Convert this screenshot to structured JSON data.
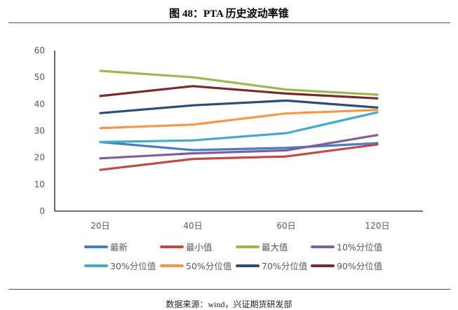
{
  "figure": {
    "title": "图 48：PTA 历史波动率锥",
    "source": "数据来源：wind，兴证期货研发部"
  },
  "chart_data": {
    "type": "line",
    "title": "PTA 历史波动率锥",
    "xlabel": "",
    "ylabel": "",
    "categories": [
      "20日",
      "40日",
      "60日",
      "120日"
    ],
    "ylim": [
      0,
      60
    ],
    "yticks": [
      0,
      10,
      20,
      30,
      40,
      50,
      60
    ],
    "grid": false,
    "legend_position": "bottom",
    "series": [
      {
        "name": "最新",
        "color": "#4a7ebb",
        "values": [
          25.8,
          22.8,
          23.6,
          25.4
        ]
      },
      {
        "name": "最小值",
        "color": "#be4b48",
        "values": [
          15.4,
          19.5,
          20.4,
          24.9
        ]
      },
      {
        "name": "最大值",
        "color": "#98b954",
        "values": [
          52.4,
          50.0,
          45.4,
          43.5
        ]
      },
      {
        "name": "10%分位值",
        "color": "#7d5fa0",
        "values": [
          19.7,
          21.6,
          22.7,
          28.4
        ]
      },
      {
        "name": "30%分位值",
        "color": "#46aac5",
        "values": [
          25.8,
          26.4,
          29.1,
          36.9
        ]
      },
      {
        "name": "50%分位值",
        "color": "#f79646",
        "values": [
          31.0,
          32.3,
          36.5,
          37.8
        ]
      },
      {
        "name": "70%分位值",
        "color": "#2c4d75",
        "values": [
          36.6,
          39.5,
          41.3,
          38.7
        ]
      },
      {
        "name": "90%分位值",
        "color": "#772c2a",
        "values": [
          43.0,
          46.7,
          43.9,
          42.1
        ]
      }
    ]
  }
}
